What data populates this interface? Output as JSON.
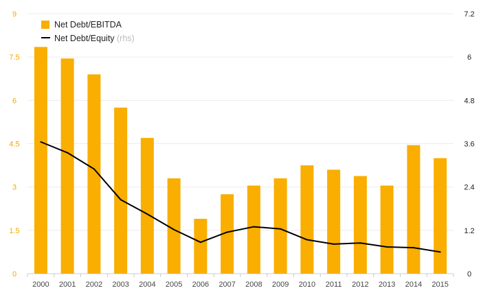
{
  "chart_data": {
    "type": "bar",
    "categories": [
      "2000",
      "2001",
      "2002",
      "2003",
      "2004",
      "2005",
      "2006",
      "2007",
      "2008",
      "2009",
      "2010",
      "2011",
      "2012",
      "2013",
      "2014",
      "2015"
    ],
    "series": [
      {
        "name": "Net Debt/EBITDA",
        "type": "bar",
        "axis": "left",
        "color": "#f9ae00",
        "values": [
          7.85,
          7.45,
          6.9,
          5.75,
          4.7,
          3.3,
          1.9,
          2.75,
          3.05,
          3.3,
          3.75,
          3.6,
          3.38,
          3.05,
          4.45,
          4.0
        ]
      },
      {
        "name": "Net Debt/Equity",
        "name_note": "(rhs)",
        "type": "line",
        "axis": "right",
        "color": "#000000",
        "values": [
          3.65,
          3.35,
          2.9,
          2.05,
          1.65,
          1.22,
          0.87,
          1.15,
          1.3,
          1.24,
          0.94,
          0.82,
          0.85,
          0.74,
          0.72,
          0.6
        ]
      }
    ],
    "y_left": {
      "ylim": [
        0,
        9
      ],
      "ticks": [
        "0",
        "1.5",
        "3",
        "4.5",
        "6",
        "7.5",
        "9"
      ],
      "tick_color": "#f2a900"
    },
    "y_right": {
      "ylim": [
        0,
        7.2
      ],
      "ticks": [
        "0",
        "1.2",
        "2.4",
        "3.6",
        "4.8",
        "6",
        "7.2"
      ],
      "tick_color": "#222222"
    },
    "grid": true,
    "legend_position": "top-left",
    "title": "",
    "xlabel": "",
    "ylabel": ""
  }
}
